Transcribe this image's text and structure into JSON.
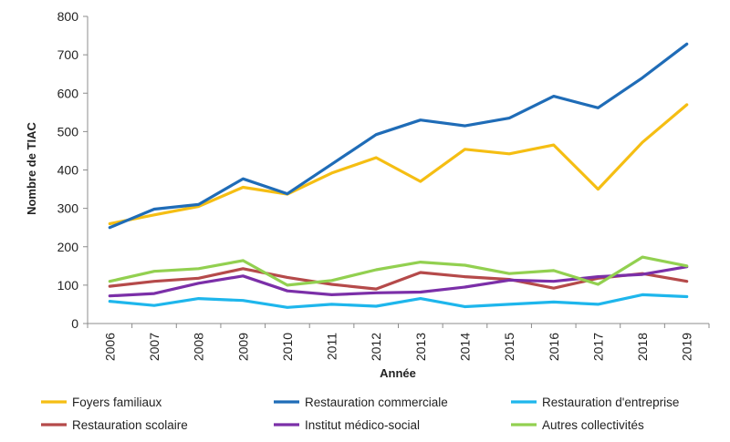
{
  "chart_data": {
    "type": "line",
    "xlabel": "Année",
    "ylabel": "Nombre de TIAC",
    "ylim": [
      0,
      800
    ],
    "yticks": [
      0,
      100,
      200,
      300,
      400,
      500,
      600,
      700,
      800
    ],
    "grid": false,
    "legend_position": "bottom",
    "categories": [
      "2006",
      "2007",
      "2008",
      "2009",
      "2010",
      "2011",
      "2012",
      "2013",
      "2014",
      "2015",
      "2016",
      "2017",
      "2018",
      "2019"
    ],
    "series": [
      {
        "name": "Foyers familiaux",
        "color": "#F5BE13",
        "values": [
          260,
          283,
          305,
          355,
          337,
          392,
          432,
          370,
          454,
          442,
          465,
          350,
          472,
          570
        ]
      },
      {
        "name": "Restauration commerciale",
        "color": "#1F6CB7",
        "values": [
          250,
          298,
          310,
          377,
          338,
          415,
          492,
          530,
          515,
          535,
          592,
          562,
          640,
          728
        ]
      },
      {
        "name": "Restauration d'entreprise",
        "color": "#1EB6EC",
        "values": [
          58,
          47,
          65,
          60,
          42,
          50,
          45,
          65,
          44,
          50,
          56,
          50,
          75,
          70
        ]
      },
      {
        "name": "Restauration scolaire",
        "color": "#B54A4A",
        "values": [
          97,
          110,
          118,
          143,
          120,
          102,
          90,
          133,
          122,
          115,
          92,
          118,
          130,
          110
        ]
      },
      {
        "name": "Institut médico-social",
        "color": "#7B2FA8",
        "values": [
          72,
          78,
          105,
          124,
          85,
          75,
          80,
          82,
          95,
          113,
          110,
          122,
          128,
          148
        ]
      },
      {
        "name": "Autres collectivités",
        "color": "#92D050",
        "values": [
          110,
          136,
          143,
          164,
          100,
          112,
          140,
          160,
          152,
          130,
          138,
          102,
          173,
          150
        ]
      }
    ]
  }
}
